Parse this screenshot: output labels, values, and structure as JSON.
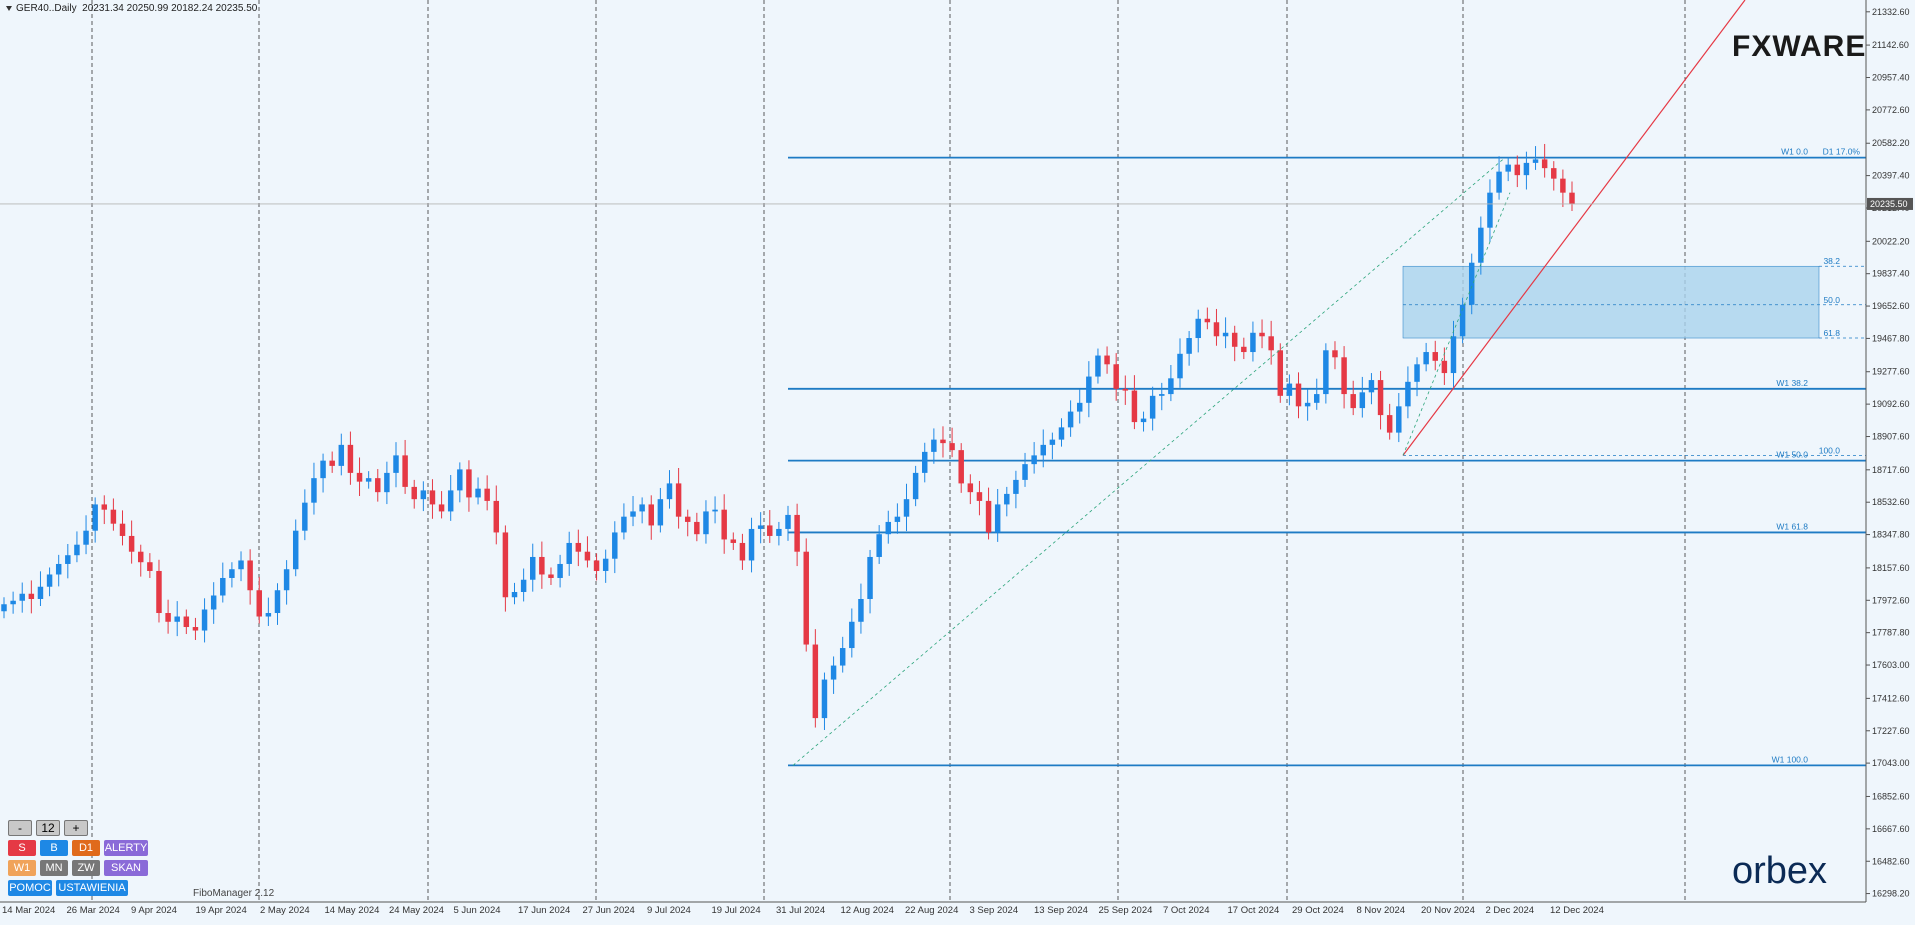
{
  "header": {
    "symbol": "GER40..Daily",
    "ohlc": "20231.34 20250.99 20182.24 20235.50"
  },
  "branding": {
    "top_logo": "FXWARE",
    "bottom_logo": "orbex"
  },
  "indicator_label": "FiboManager 2.12",
  "colors": {
    "background": "#eff6fc",
    "bull": "#1e88e5",
    "bear": "#e53945",
    "fib_line": "#1e7bc4",
    "trend_line": "#e53945",
    "zone_fill": "#a9d3ec"
  },
  "toolbox": {
    "minus": "-",
    "count": "12",
    "plus": "+",
    "s": "S",
    "b": "B",
    "d1": "D1",
    "alerty": "ALERTY",
    "w1": "W1",
    "mn": "MN",
    "zw": "ZW",
    "skan": "SKAN",
    "pomoc": "POMOC",
    "ustawienia": "USTAWIENIA"
  },
  "chart_data": {
    "type": "candlestick",
    "symbol": "GER40..Daily",
    "y_range": [
      16250,
      21400
    ],
    "y_ticks": [
      "21332.60",
      "21142.60",
      "20957.40",
      "20772.60",
      "20582.20",
      "20397.40",
      "20212.40",
      "20022.20",
      "19837.40",
      "19652.60",
      "19467.80",
      "19277.60",
      "19092.60",
      "18907.60",
      "18717.60",
      "18532.60",
      "18347.80",
      "18157.60",
      "17972.60",
      "17787.80",
      "17603.00",
      "17412.60",
      "17227.60",
      "17043.00",
      "16852.60",
      "16667.60",
      "16482.60",
      "16298.20"
    ],
    "x_labels": [
      "14 Mar 2024",
      "26 Mar 2024",
      "9 Apr 2024",
      "19 Apr 2024",
      "2 May 2024",
      "14 May 2024",
      "24 May 2024",
      "5 Jun 2024",
      "17 Jun 2024",
      "27 Jun 2024",
      "9 Jul 2024",
      "19 Jul 2024",
      "31 Jul 2024",
      "12 Aug 2024",
      "22 Aug 2024",
      "3 Sep 2024",
      "13 Sep 2024",
      "25 Sep 2024",
      "7 Oct 2024",
      "17 Oct 2024",
      "29 Oct 2024",
      "8 Nov 2024",
      "20 Nov 2024",
      "2 Dec 2024",
      "12 Dec 2024"
    ],
    "current_price": "20235.50",
    "closes": [
      17950,
      17970,
      18010,
      17980,
      18050,
      18120,
      18180,
      18230,
      18290,
      18370,
      18520,
      18490,
      18410,
      18340,
      18250,
      18190,
      18140,
      17900,
      17850,
      17880,
      17820,
      17800,
      17920,
      18000,
      18100,
      18150,
      18200,
      18030,
      17880,
      17900,
      18030,
      18150,
      18370,
      18530,
      18670,
      18770,
      18740,
      18860,
      18700,
      18650,
      18670,
      18590,
      18700,
      18800,
      18620,
      18550,
      18600,
      18520,
      18480,
      18600,
      18720,
      18560,
      18610,
      18540,
      18360,
      17990,
      18020,
      18090,
      18220,
      18120,
      18100,
      18180,
      18300,
      18250,
      18200,
      18140,
      18210,
      18360,
      18450,
      18480,
      18520,
      18400,
      18550,
      18640,
      18450,
      18420,
      18350,
      18480,
      18490,
      18320,
      18300,
      18200,
      18380,
      18400,
      18340,
      18380,
      18460,
      18250,
      17720,
      17300,
      17520,
      17600,
      17700,
      17850,
      17980,
      18220,
      18350,
      18420,
      18450,
      18550,
      18700,
      18820,
      18890,
      18870,
      18830,
      18640,
      18590,
      18540,
      18360,
      18520,
      18580,
      18660,
      18750,
      18800,
      18860,
      18890,
      18960,
      19050,
      19100,
      19250,
      19370,
      19320,
      19180,
      19170,
      18990,
      19010,
      19140,
      19150,
      19240,
      19380,
      19470,
      19580,
      19560,
      19480,
      19500,
      19420,
      19390,
      19500,
      19480,
      19400,
      19140,
      19210,
      19080,
      19100,
      19150,
      19400,
      19360,
      19150,
      19070,
      19160,
      19230,
      19030,
      18930,
      19080,
      19220,
      19320,
      19390,
      19340,
      19270,
      19480,
      19660,
      19900,
      20100,
      20300,
      20420,
      20460,
      20400,
      20470,
      20490,
      20440,
      20380,
      20300,
      20235.5
    ],
    "levels": [
      {
        "label": "W1 0.0",
        "price": 20500
      },
      {
        "label": "W1 38.2",
        "price": 19180
      },
      {
        "label": "W1 50.0",
        "price": 18770
      },
      {
        "label": "W1 61.8",
        "price": 18360
      },
      {
        "label": "W1 100.0",
        "price": 17030
      }
    ],
    "level_tags": {
      "top_extra": "D1 17.0%"
    },
    "zone": {
      "label_top": "38.2",
      "label_mid": "50.0",
      "label_bottom": "61.8",
      "label_anchor": "100.0",
      "top": 19880,
      "mid": 19660,
      "bottom": 19470,
      "anchor": 18800
    },
    "grid": "dashed vertical"
  }
}
